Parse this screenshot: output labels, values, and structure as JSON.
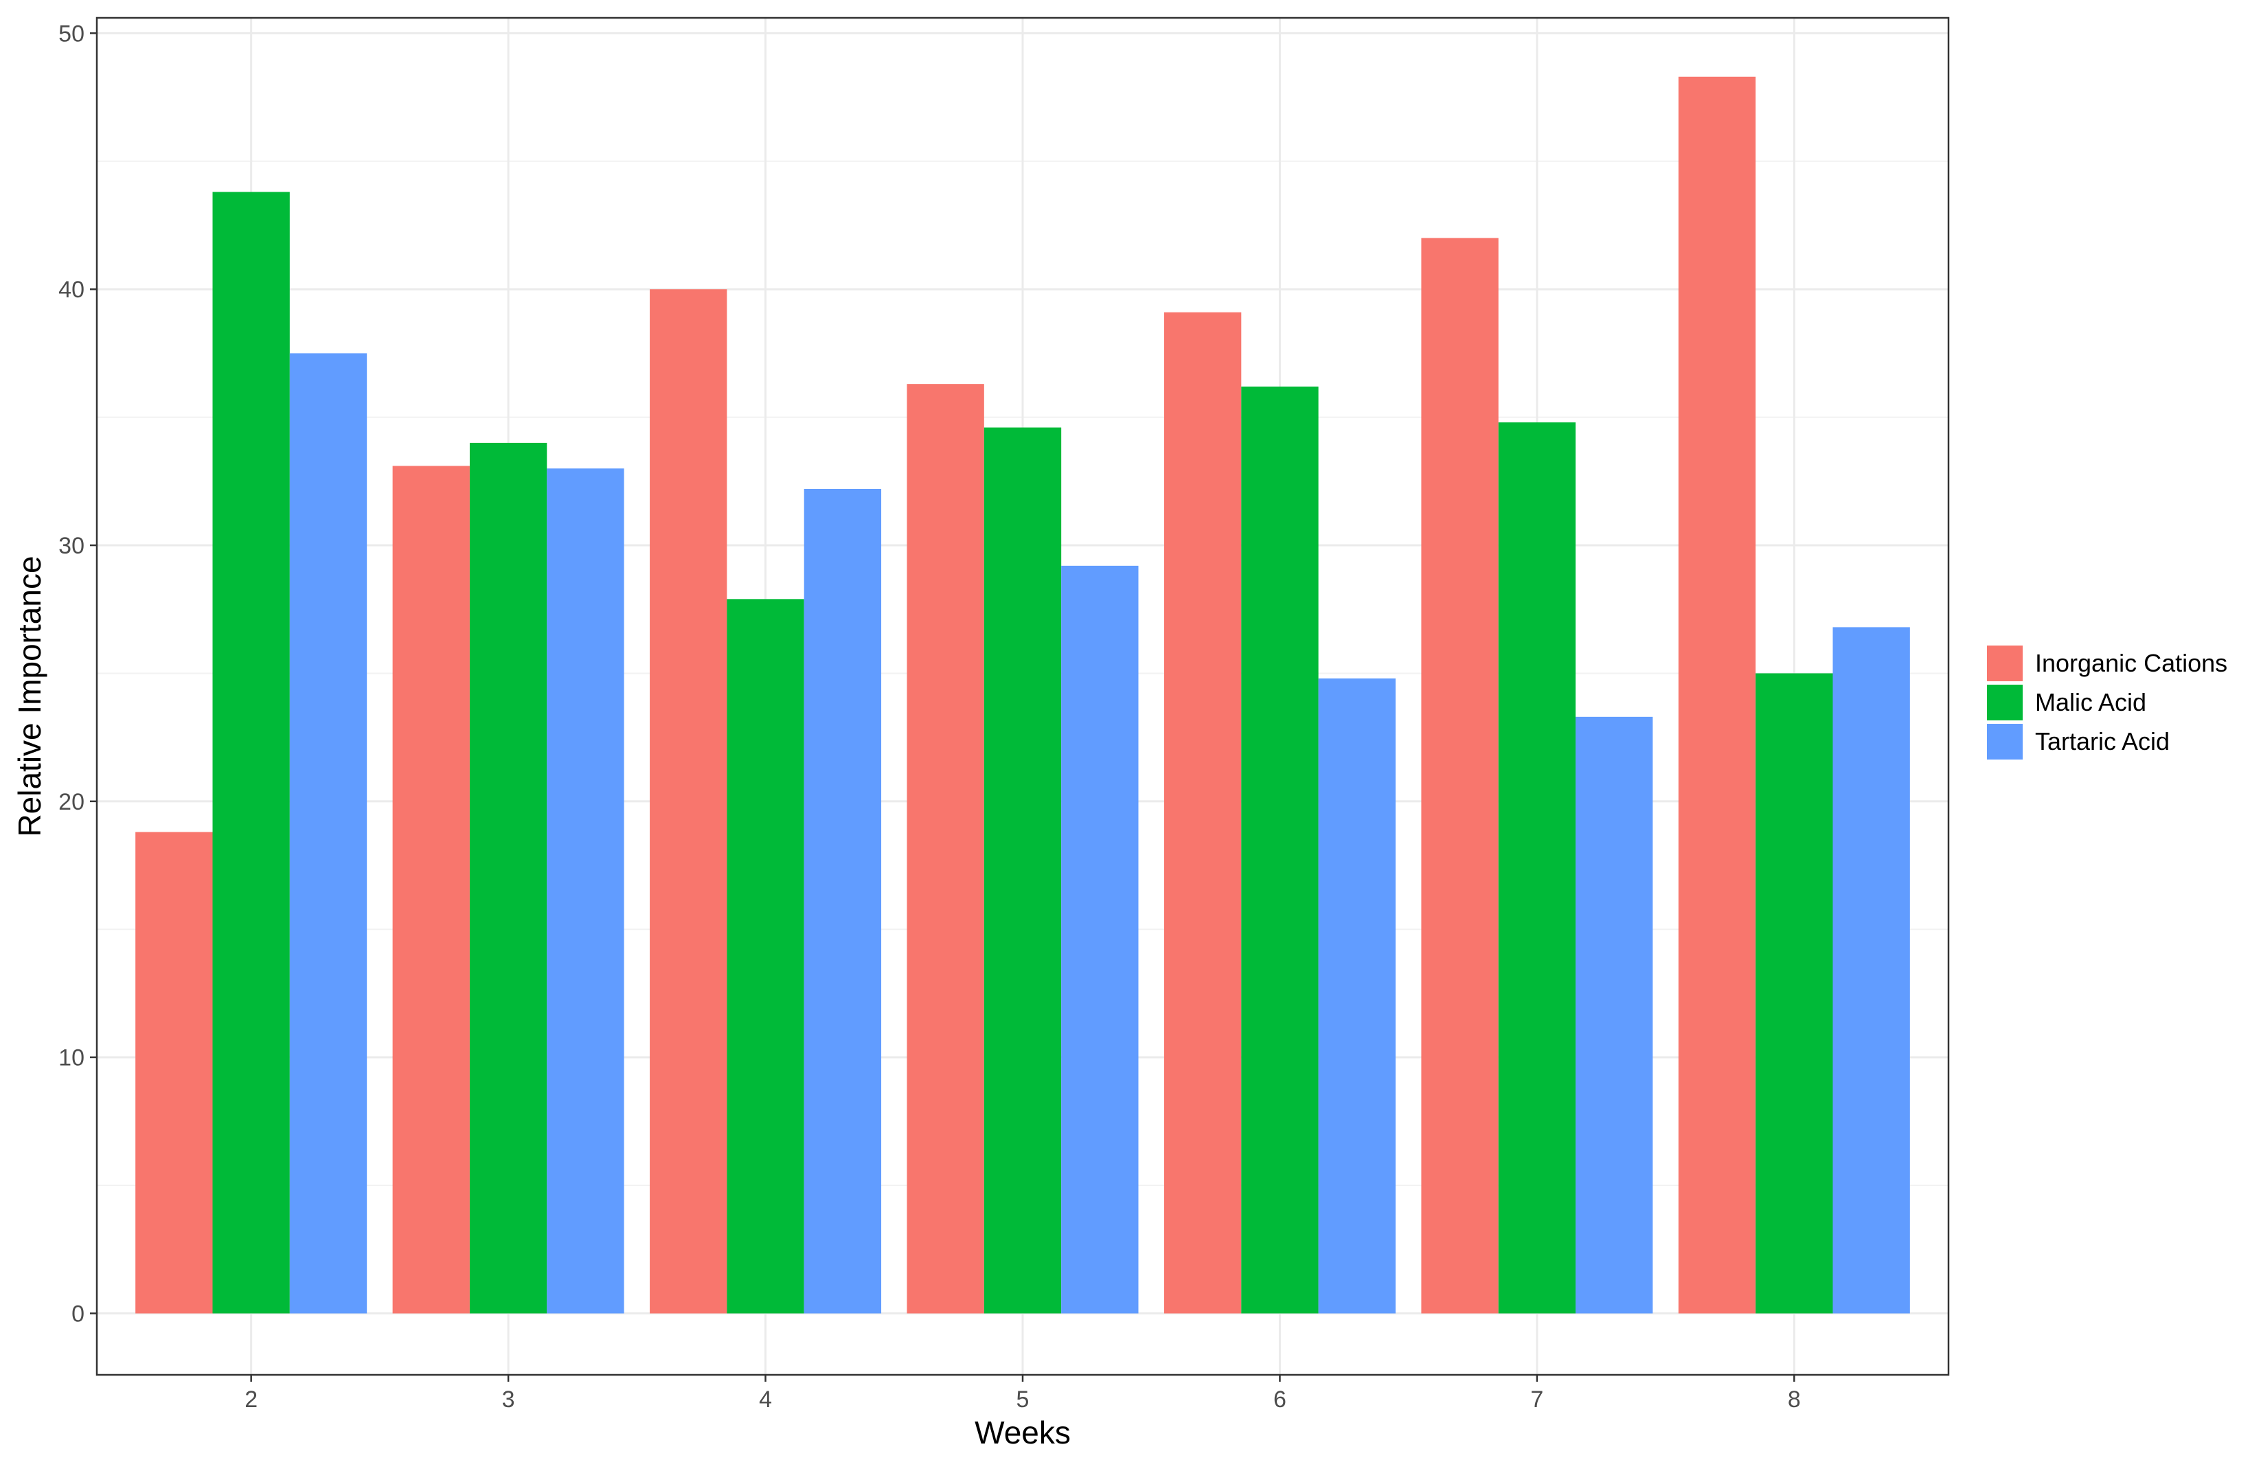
{
  "chart_data": {
    "type": "bar",
    "categories": [
      "2",
      "3",
      "4",
      "5",
      "6",
      "7",
      "8"
    ],
    "series": [
      {
        "name": "Inorganic Cations",
        "color": "#F8766D",
        "values": [
          18.8,
          33.1,
          40.0,
          36.3,
          39.1,
          42.0,
          48.3
        ]
      },
      {
        "name": "Malic Acid",
        "color": "#00BA38",
        "values": [
          43.8,
          34.0,
          27.9,
          34.6,
          36.2,
          34.8,
          25.0
        ]
      },
      {
        "name": "Tartaric Acid",
        "color": "#619CFF",
        "values": [
          37.5,
          33.0,
          32.2,
          29.2,
          24.8,
          23.3,
          26.8
        ]
      }
    ],
    "title": "",
    "xlabel": "Weeks",
    "ylabel": "Relative Importance",
    "ylim": [
      -2.4,
      50.6
    ],
    "yticks": [
      0,
      10,
      20,
      30,
      40,
      50
    ],
    "grid": true,
    "legend_position": "right"
  }
}
